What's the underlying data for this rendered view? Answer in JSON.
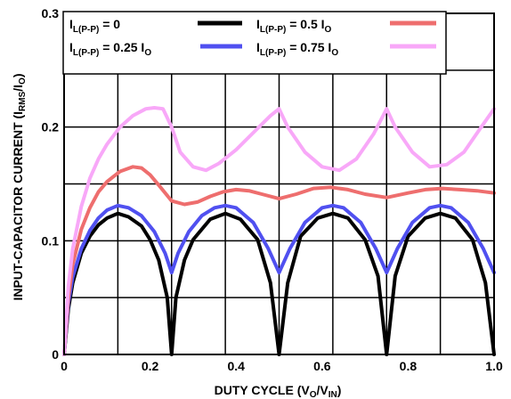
{
  "chart_data": {
    "type": "line",
    "xlabel": {
      "main": "DUTY CYCLE (V",
      "sub1": "O",
      "mid": "/V",
      "sub2": "IN",
      "end": ")"
    },
    "ylabel": {
      "main": "INPUT-CAPACITOR CURRENT (I",
      "sub": "RMS",
      "end": "/I",
      "sub2": "O",
      "close": ")"
    },
    "xlim": [
      0,
      1.0
    ],
    "ylim": [
      0,
      0.3
    ],
    "xticks": [
      "0",
      "0.2",
      "0.4",
      "0.6",
      "0.8",
      "1.0"
    ],
    "yticks": [
      "0",
      "0.1",
      "0.2",
      "0.3"
    ],
    "grid": true,
    "legend_position": "top",
    "series": [
      {
        "name": {
          "main": "I",
          "sub": "L(P-P)",
          "rest": " = 0",
          "sub2": ""
        },
        "color": "#000000",
        "x": [
          0,
          0.01,
          0.02,
          0.04,
          0.06,
          0.08,
          0.1,
          0.125,
          0.15,
          0.18,
          0.2,
          0.22,
          0.24,
          0.25,
          0.26,
          0.28,
          0.3,
          0.34,
          0.375,
          0.41,
          0.45,
          0.48,
          0.5,
          0.52,
          0.55,
          0.59,
          0.625,
          0.66,
          0.7,
          0.73,
          0.75,
          0.77,
          0.8,
          0.84,
          0.875,
          0.91,
          0.95,
          0.98,
          1.0
        ],
        "y": [
          0,
          0.04,
          0.063,
          0.089,
          0.104,
          0.114,
          0.12,
          0.124,
          0.121,
          0.113,
          0.101,
          0.083,
          0.05,
          0.0,
          0.05,
          0.083,
          0.101,
          0.119,
          0.124,
          0.119,
          0.101,
          0.063,
          0.0,
          0.063,
          0.104,
          0.12,
          0.124,
          0.12,
          0.101,
          0.069,
          0.0,
          0.069,
          0.104,
          0.12,
          0.124,
          0.12,
          0.101,
          0.063,
          0.0
        ]
      },
      {
        "name": {
          "main": "I",
          "sub": "L(P-P)",
          "rest": " = 0.25 I",
          "sub2": "O"
        },
        "color": "#5050f0",
        "x": [
          0,
          0.01,
          0.02,
          0.04,
          0.06,
          0.08,
          0.1,
          0.125,
          0.15,
          0.18,
          0.21,
          0.235,
          0.25,
          0.265,
          0.29,
          0.32,
          0.35,
          0.375,
          0.4,
          0.44,
          0.475,
          0.5,
          0.525,
          0.56,
          0.6,
          0.625,
          0.65,
          0.69,
          0.725,
          0.75,
          0.775,
          0.81,
          0.85,
          0.875,
          0.9,
          0.94,
          0.975,
          1.0
        ],
        "y": [
          0,
          0.045,
          0.068,
          0.093,
          0.109,
          0.12,
          0.127,
          0.131,
          0.129,
          0.122,
          0.108,
          0.089,
          0.072,
          0.089,
          0.108,
          0.122,
          0.129,
          0.131,
          0.129,
          0.116,
          0.093,
          0.072,
          0.093,
          0.116,
          0.129,
          0.131,
          0.129,
          0.116,
          0.093,
          0.072,
          0.093,
          0.116,
          0.129,
          0.131,
          0.129,
          0.116,
          0.093,
          0.072
        ]
      },
      {
        "name": {
          "main": "I",
          "sub": "L(P-P)",
          "rest": " = 0.5 I",
          "sub2": "O"
        },
        "color": "#ee6e6e",
        "x": [
          0,
          0.01,
          0.02,
          0.04,
          0.06,
          0.08,
          0.1,
          0.13,
          0.16,
          0.18,
          0.2,
          0.22,
          0.25,
          0.28,
          0.31,
          0.34,
          0.37,
          0.4,
          0.43,
          0.46,
          0.5,
          0.54,
          0.58,
          0.62,
          0.66,
          0.7,
          0.75,
          0.8,
          0.84,
          0.88,
          0.92,
          0.96,
          1.0
        ],
        "y": [
          0,
          0.05,
          0.079,
          0.11,
          0.129,
          0.143,
          0.152,
          0.161,
          0.165,
          0.164,
          0.158,
          0.149,
          0.135,
          0.132,
          0.134,
          0.139,
          0.143,
          0.145,
          0.144,
          0.141,
          0.137,
          0.141,
          0.146,
          0.147,
          0.145,
          0.141,
          0.138,
          0.142,
          0.145,
          0.146,
          0.145,
          0.144,
          0.142
        ]
      },
      {
        "name": {
          "main": "I",
          "sub": "L(P-P)",
          "rest": " = 0.75 I",
          "sub2": "O"
        },
        "color": "#f8a8f8",
        "x": [
          0,
          0.01,
          0.02,
          0.04,
          0.06,
          0.08,
          0.1,
          0.13,
          0.16,
          0.19,
          0.21,
          0.23,
          0.25,
          0.27,
          0.3,
          0.33,
          0.36,
          0.4,
          0.44,
          0.48,
          0.5,
          0.52,
          0.56,
          0.6,
          0.64,
          0.68,
          0.72,
          0.75,
          0.77,
          0.81,
          0.85,
          0.89,
          0.93,
          0.97,
          1.0
        ],
        "y": [
          0,
          0.06,
          0.093,
          0.13,
          0.155,
          0.172,
          0.185,
          0.2,
          0.21,
          0.216,
          0.217,
          0.216,
          0.2,
          0.178,
          0.165,
          0.162,
          0.168,
          0.18,
          0.195,
          0.21,
          0.216,
          0.2,
          0.178,
          0.165,
          0.162,
          0.172,
          0.194,
          0.216,
          0.2,
          0.178,
          0.165,
          0.167,
          0.178,
          0.2,
          0.216
        ]
      }
    ]
  }
}
